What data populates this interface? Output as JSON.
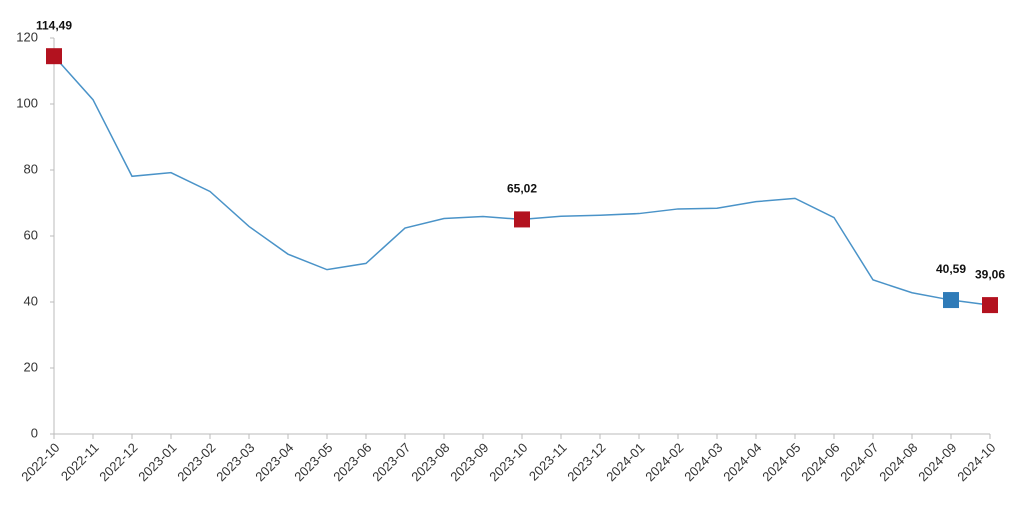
{
  "chart_data": {
    "type": "line",
    "categories": [
      "2022-10",
      "2022-11",
      "2022-12",
      "2023-01",
      "2023-02",
      "2023-03",
      "2023-04",
      "2023-05",
      "2023-06",
      "2023-07",
      "2023-08",
      "2023-09",
      "2023-10",
      "2023-11",
      "2023-12",
      "2024-01",
      "2024-02",
      "2024-03",
      "2024-04",
      "2024-05",
      "2024-06",
      "2024-07",
      "2024-08",
      "2024-09",
      "2024-10"
    ],
    "values": [
      114.49,
      101.3,
      78.1,
      79.2,
      73.5,
      62.9,
      54.5,
      49.8,
      51.7,
      62.4,
      65.3,
      65.9,
      65.02,
      66.0,
      66.3,
      66.8,
      68.2,
      68.4,
      70.4,
      71.4,
      65.6,
      46.7,
      42.8,
      40.59,
      39.06
    ],
    "value_labels": [
      "114,49",
      null,
      null,
      null,
      null,
      null,
      null,
      null,
      null,
      null,
      null,
      null,
      "65,02",
      null,
      null,
      null,
      null,
      null,
      null,
      null,
      null,
      null,
      null,
      "40,59",
      "39,06"
    ],
    "marker_colors": [
      "#b3121f",
      null,
      null,
      null,
      null,
      null,
      null,
      null,
      null,
      null,
      null,
      null,
      "#b3121f",
      null,
      null,
      null,
      null,
      null,
      null,
      null,
      null,
      null,
      null,
      "#2f7bb8",
      "#b3121f"
    ],
    "color": "#4a93c8",
    "ylim": [
      0,
      120
    ],
    "yticks": [
      0,
      20,
      40,
      60,
      80,
      100,
      120
    ],
    "grid": false
  }
}
